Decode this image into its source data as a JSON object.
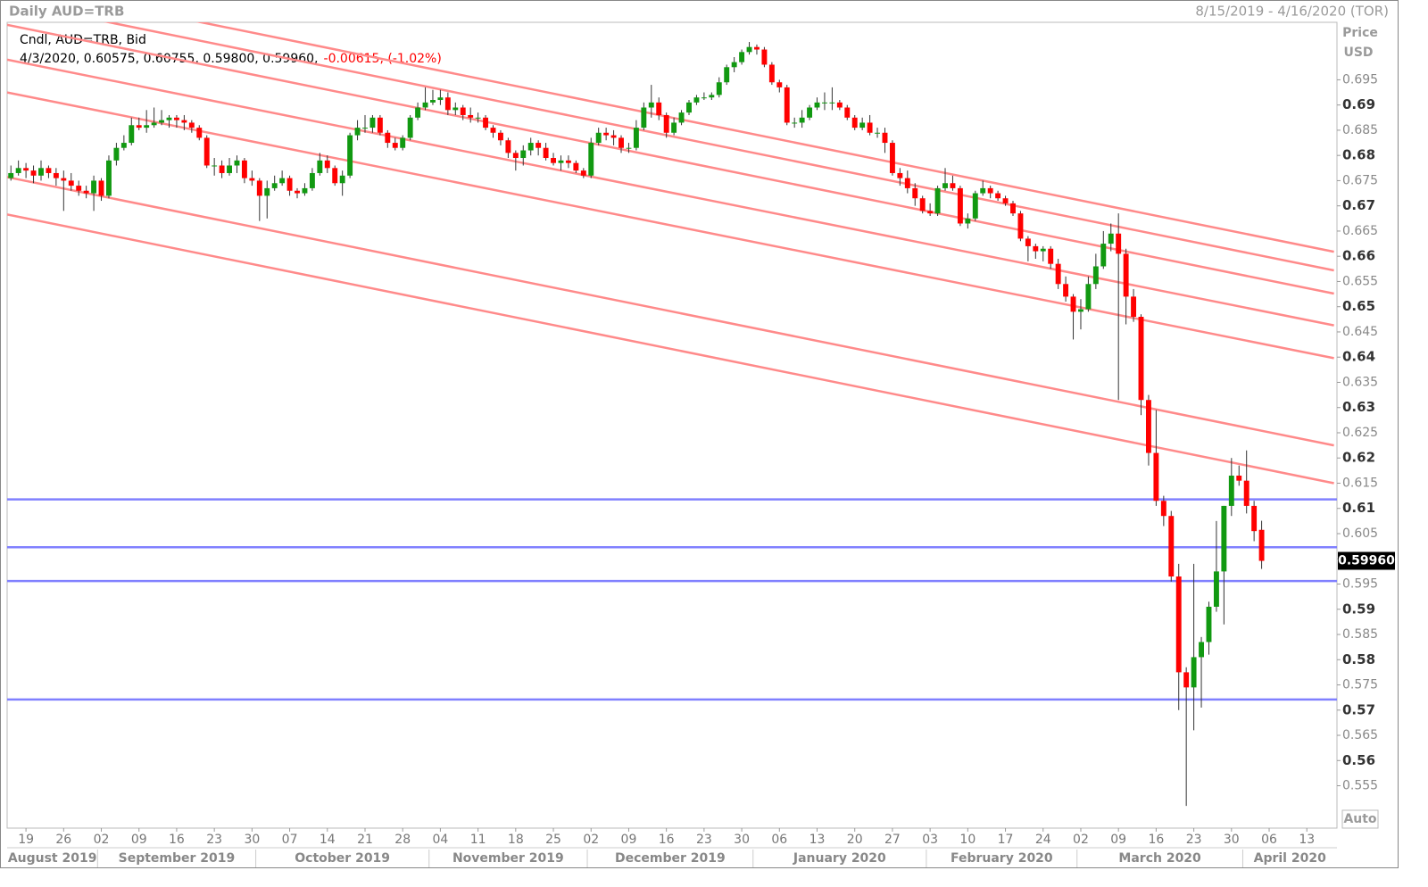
{
  "chart_data": {
    "type": "candlestick",
    "title": "Daily AUD=TRB",
    "date_range": "8/15/2019 - 4/16/2020 (TOR)",
    "legend": {
      "line1": "Cndl, AUD=TRB, Bid",
      "line2": "4/3/2020, 0.60575, 0.60755, 0.59800, 0.59960,",
      "change": "-0.00615, (-1.02%)"
    },
    "y_axis_label": [
      "Price",
      "USD"
    ],
    "auto_label": "Auto",
    "up_color": "#119911",
    "down_color": "#ff0000",
    "open": [
      0.6755,
      0.6765,
      0.6775,
      0.677,
      0.676,
      0.6775,
      0.6765,
      0.6755,
      0.675,
      0.674,
      0.673,
      0.6725,
      0.675,
      0.672,
      0.679,
      0.6815,
      0.6825,
      0.686,
      0.6855,
      0.686,
      0.6865,
      0.687,
      0.6875,
      0.687,
      0.6865,
      0.6855,
      0.6835,
      0.678,
      0.678,
      0.6765,
      0.678,
      0.679,
      0.6755,
      0.675,
      0.672,
      0.6735,
      0.6745,
      0.6755,
      0.673,
      0.6725,
      0.6735,
      0.6765,
      0.679,
      0.6775,
      0.6745,
      0.676,
      0.684,
      0.6855,
      0.6855,
      0.6875,
      0.6845,
      0.6825,
      0.6815,
      0.6835,
      0.6875,
      0.6895,
      0.6905,
      0.691,
      0.6915,
      0.689,
      0.6895,
      0.688,
      0.6875,
      0.6875,
      0.6855,
      0.6845,
      0.683,
      0.6805,
      0.6795,
      0.681,
      0.6825,
      0.6815,
      0.6795,
      0.6785,
      0.679,
      0.6785,
      0.677,
      0.676,
      0.6825,
      0.6845,
      0.684,
      0.6835,
      0.6815,
      0.6815,
      0.6855,
      0.6895,
      0.6905,
      0.688,
      0.6845,
      0.6865,
      0.6885,
      0.6905,
      0.6915,
      0.6915,
      0.692,
      0.6945,
      0.6975,
      0.6985,
      0.7005,
      0.7015,
      0.701,
      0.698,
      0.6945,
      0.6935,
      0.6865,
      0.6865,
      0.6875,
      0.6895,
      0.6905,
      0.6905,
      0.6905,
      0.6895,
      0.6875,
      0.6855,
      0.6865,
      0.6845,
      0.6845,
      0.6825,
      0.6765,
      0.6755,
      0.6735,
      0.6715,
      0.669,
      0.6685,
      0.6735,
      0.6745,
      0.6735,
      0.6665,
      0.6675,
      0.6725,
      0.6735,
      0.6725,
      0.6715,
      0.6705,
      0.6685,
      0.6635,
      0.662,
      0.661,
      0.6615,
      0.6585,
      0.6545,
      0.652,
      0.649,
      0.6495,
      0.6545,
      0.658,
      0.6625,
      0.6645,
      0.6605,
      0.652,
      0.648,
      0.6315,
      0.621,
      0.6115,
      0.6085,
      0.5965,
      0.5775,
      0.5745,
      0.5805,
      0.5835,
      0.5905,
      0.5975,
      0.6105,
      0.6165,
      0.6155,
      0.6105,
      0.60575
    ],
    "high": [
      0.678,
      0.679,
      0.6785,
      0.678,
      0.679,
      0.678,
      0.6775,
      0.677,
      0.6765,
      0.675,
      0.674,
      0.676,
      0.6755,
      0.68,
      0.6825,
      0.684,
      0.6875,
      0.6875,
      0.689,
      0.6895,
      0.689,
      0.688,
      0.688,
      0.688,
      0.687,
      0.686,
      0.684,
      0.6795,
      0.679,
      0.6795,
      0.68,
      0.6795,
      0.677,
      0.6755,
      0.675,
      0.676,
      0.677,
      0.676,
      0.6735,
      0.6745,
      0.6775,
      0.6805,
      0.68,
      0.678,
      0.677,
      0.6845,
      0.687,
      0.688,
      0.688,
      0.688,
      0.685,
      0.6835,
      0.684,
      0.688,
      0.6905,
      0.6935,
      0.693,
      0.693,
      0.6925,
      0.6905,
      0.69,
      0.6895,
      0.6885,
      0.688,
      0.686,
      0.685,
      0.6835,
      0.681,
      0.682,
      0.6835,
      0.683,
      0.6825,
      0.6805,
      0.68,
      0.68,
      0.679,
      0.6775,
      0.6835,
      0.6855,
      0.6855,
      0.685,
      0.684,
      0.6825,
      0.687,
      0.6905,
      0.694,
      0.6915,
      0.6885,
      0.6875,
      0.689,
      0.691,
      0.692,
      0.6925,
      0.6925,
      0.6955,
      0.698,
      0.6995,
      0.701,
      0.7025,
      0.702,
      0.7015,
      0.6985,
      0.695,
      0.694,
      0.6875,
      0.689,
      0.69,
      0.6915,
      0.6925,
      0.6935,
      0.691,
      0.69,
      0.688,
      0.6875,
      0.688,
      0.6855,
      0.6855,
      0.683,
      0.6775,
      0.677,
      0.6745,
      0.672,
      0.6705,
      0.674,
      0.6775,
      0.676,
      0.674,
      0.6685,
      0.673,
      0.675,
      0.674,
      0.673,
      0.672,
      0.671,
      0.669,
      0.664,
      0.6625,
      0.662,
      0.662,
      0.6595,
      0.656,
      0.6525,
      0.6515,
      0.656,
      0.6605,
      0.665,
      0.6665,
      0.6685,
      0.6615,
      0.6535,
      0.6485,
      0.6325,
      0.6295,
      0.6125,
      0.6095,
      0.599,
      0.5785,
      0.599,
      0.5845,
      0.5915,
      0.6075,
      0.6105,
      0.62,
      0.6185,
      0.6215,
      0.6115,
      0.60755
    ],
    "low": [
      0.675,
      0.676,
      0.6755,
      0.6745,
      0.675,
      0.6755,
      0.674,
      0.669,
      0.673,
      0.672,
      0.6715,
      0.669,
      0.671,
      0.6715,
      0.678,
      0.681,
      0.682,
      0.685,
      0.6845,
      0.6855,
      0.686,
      0.6855,
      0.6855,
      0.685,
      0.6845,
      0.683,
      0.6775,
      0.676,
      0.6755,
      0.676,
      0.6765,
      0.6745,
      0.674,
      0.667,
      0.6675,
      0.673,
      0.674,
      0.672,
      0.6715,
      0.672,
      0.673,
      0.676,
      0.6765,
      0.674,
      0.672,
      0.6755,
      0.683,
      0.6845,
      0.6845,
      0.684,
      0.6815,
      0.681,
      0.681,
      0.683,
      0.687,
      0.689,
      0.69,
      0.69,
      0.688,
      0.688,
      0.687,
      0.6865,
      0.6865,
      0.685,
      0.6835,
      0.682,
      0.6795,
      0.677,
      0.678,
      0.68,
      0.68,
      0.679,
      0.678,
      0.677,
      0.6775,
      0.6765,
      0.6755,
      0.6755,
      0.682,
      0.683,
      0.682,
      0.6805,
      0.6805,
      0.681,
      0.685,
      0.6875,
      0.687,
      0.6835,
      0.684,
      0.686,
      0.688,
      0.69,
      0.691,
      0.691,
      0.6915,
      0.694,
      0.6965,
      0.698,
      0.7,
      0.7,
      0.6975,
      0.694,
      0.6925,
      0.686,
      0.6855,
      0.6855,
      0.687,
      0.689,
      0.689,
      0.689,
      0.689,
      0.687,
      0.685,
      0.685,
      0.684,
      0.6835,
      0.6805,
      0.676,
      0.674,
      0.6725,
      0.67,
      0.6685,
      0.668,
      0.668,
      0.673,
      0.673,
      0.666,
      0.6655,
      0.667,
      0.672,
      0.6715,
      0.671,
      0.67,
      0.668,
      0.663,
      0.659,
      0.6595,
      0.659,
      0.6575,
      0.6535,
      0.651,
      0.6435,
      0.6455,
      0.649,
      0.6535,
      0.6575,
      0.661,
      0.6315,
      0.6465,
      0.647,
      0.6285,
      0.6185,
      0.6105,
      0.6065,
      0.5955,
      0.57,
      0.551,
      0.566,
      0.5705,
      0.581,
      0.5895,
      0.587,
      0.6085,
      0.6145,
      0.609,
      0.6035,
      0.598
    ],
    "close": [
      0.6765,
      0.6775,
      0.677,
      0.676,
      0.6775,
      0.6765,
      0.6755,
      0.675,
      0.674,
      0.673,
      0.6725,
      0.675,
      0.672,
      0.679,
      0.6815,
      0.6825,
      0.686,
      0.6855,
      0.686,
      0.6865,
      0.687,
      0.6875,
      0.687,
      0.6865,
      0.6855,
      0.6835,
      0.678,
      0.678,
      0.6765,
      0.678,
      0.679,
      0.6755,
      0.675,
      0.672,
      0.6735,
      0.6745,
      0.6755,
      0.673,
      0.6725,
      0.6735,
      0.6765,
      0.679,
      0.6775,
      0.6745,
      0.676,
      0.684,
      0.6855,
      0.6855,
      0.6875,
      0.6845,
      0.6825,
      0.6815,
      0.6835,
      0.6875,
      0.6895,
      0.6905,
      0.691,
      0.6915,
      0.689,
      0.6895,
      0.688,
      0.6875,
      0.6875,
      0.6855,
      0.6845,
      0.683,
      0.6805,
      0.6795,
      0.681,
      0.6825,
      0.6815,
      0.6795,
      0.6785,
      0.679,
      0.6785,
      0.677,
      0.676,
      0.6825,
      0.6845,
      0.684,
      0.6835,
      0.6815,
      0.6815,
      0.6855,
      0.6895,
      0.6905,
      0.688,
      0.6845,
      0.6865,
      0.6885,
      0.6905,
      0.6915,
      0.6915,
      0.692,
      0.6945,
      0.6975,
      0.6985,
      0.7005,
      0.7015,
      0.701,
      0.698,
      0.6945,
      0.6935,
      0.6865,
      0.6865,
      0.6875,
      0.6895,
      0.6905,
      0.6905,
      0.6905,
      0.6895,
      0.6875,
      0.6855,
      0.6865,
      0.6845,
      0.6845,
      0.6825,
      0.6765,
      0.6755,
      0.6735,
      0.6715,
      0.669,
      0.6685,
      0.6735,
      0.6745,
      0.6735,
      0.6665,
      0.6675,
      0.6725,
      0.6735,
      0.6725,
      0.6715,
      0.6705,
      0.6685,
      0.6635,
      0.662,
      0.661,
      0.6615,
      0.6585,
      0.6545,
      0.652,
      0.649,
      0.6495,
      0.6545,
      0.658,
      0.6625,
      0.6645,
      0.6605,
      0.652,
      0.648,
      0.6315,
      0.621,
      0.6115,
      0.6085,
      0.5965,
      0.5775,
      0.5745,
      0.5805,
      0.5835,
      0.5905,
      0.5975,
      0.6105,
      0.6165,
      0.6155,
      0.6105,
      0.6055,
      0.5996
    ],
    "last": {
      "value": 0.5996,
      "label": "0.59960"
    },
    "xlim": [
      -0.5,
      176
    ],
    "xticks": [
      {
        "value": 2,
        "label": "19"
      },
      {
        "value": 7,
        "label": "26"
      },
      {
        "value": 12,
        "label": "02"
      },
      {
        "value": 17,
        "label": "09"
      },
      {
        "value": 22,
        "label": "16"
      },
      {
        "value": 27,
        "label": "23"
      },
      {
        "value": 32,
        "label": "30"
      },
      {
        "value": 37,
        "label": "07"
      },
      {
        "value": 42,
        "label": "14"
      },
      {
        "value": 47,
        "label": "21"
      },
      {
        "value": 52,
        "label": "28"
      },
      {
        "value": 57,
        "label": "04"
      },
      {
        "value": 62,
        "label": "11"
      },
      {
        "value": 67,
        "label": "18"
      },
      {
        "value": 72,
        "label": "25"
      },
      {
        "value": 77,
        "label": "02"
      },
      {
        "value": 82,
        "label": "09"
      },
      {
        "value": 87,
        "label": "16"
      },
      {
        "value": 92,
        "label": "23"
      },
      {
        "value": 97,
        "label": "30"
      },
      {
        "value": 102,
        "label": "06"
      },
      {
        "value": 107,
        "label": "13"
      },
      {
        "value": 112,
        "label": "20"
      },
      {
        "value": 117,
        "label": "27"
      },
      {
        "value": 122,
        "label": "03"
      },
      {
        "value": 127,
        "label": "10"
      },
      {
        "value": 132,
        "label": "17"
      },
      {
        "value": 137,
        "label": "24"
      },
      {
        "value": 142,
        "label": "02"
      },
      {
        "value": 147,
        "label": "09"
      },
      {
        "value": 152,
        "label": "16"
      },
      {
        "value": 157,
        "label": "23"
      },
      {
        "value": 162,
        "label": "30"
      },
      {
        "value": 167,
        "label": "06"
      },
      {
        "value": 172,
        "label": "13"
      }
    ],
    "months": [
      {
        "value": -0.5,
        "label": "August 2019"
      },
      {
        "value": 11.5,
        "label": "September 2019"
      },
      {
        "value": 32.5,
        "label": "October 2019"
      },
      {
        "value": 55.5,
        "label": "November 2019"
      },
      {
        "value": 76.5,
        "label": "December 2019"
      },
      {
        "value": 98.5,
        "label": "January 2020"
      },
      {
        "value": 121.5,
        "label": "February 2020"
      },
      {
        "value": 141.5,
        "label": "March 2020"
      },
      {
        "value": 163.5,
        "label": "April 2020"
      }
    ],
    "ylim": [
      0.5466,
      0.7064
    ],
    "yticks": [
      0.555,
      0.56,
      0.565,
      0.57,
      0.575,
      0.58,
      0.585,
      0.59,
      0.595,
      0.6,
      0.605,
      0.61,
      0.615,
      0.62,
      0.625,
      0.63,
      0.635,
      0.64,
      0.645,
      0.65,
      0.655,
      0.66,
      0.665,
      0.67,
      0.675,
      0.68,
      0.685,
      0.69,
      0.695
    ],
    "trendline_color": "#ff8a8a",
    "trendlines": [
      {
        "x": [
          -0.5,
          175.6
        ],
        "y": [
          0.7142,
          0.6609
        ]
      },
      {
        "x": [
          -0.5,
          175.6
        ],
        "y": [
          0.7105,
          0.6572
        ]
      },
      {
        "x": [
          -0.5,
          175.6
        ],
        "y": [
          0.7059,
          0.6526
        ]
      },
      {
        "x": [
          -0.5,
          175.6
        ],
        "y": [
          0.699,
          0.6463
        ]
      },
      {
        "x": [
          -0.5,
          175.6
        ],
        "y": [
          0.6925,
          0.6398
        ]
      },
      {
        "x": [
          -0.5,
          175.6
        ],
        "y": [
          0.6757,
          0.6225
        ]
      },
      {
        "x": [
          -0.5,
          175.6
        ],
        "y": [
          0.6683,
          0.615
        ]
      }
    ],
    "level_color": "#8080ff",
    "levels": [
      0.6118,
      0.6023,
      0.5956,
      0.5721
    ]
  }
}
